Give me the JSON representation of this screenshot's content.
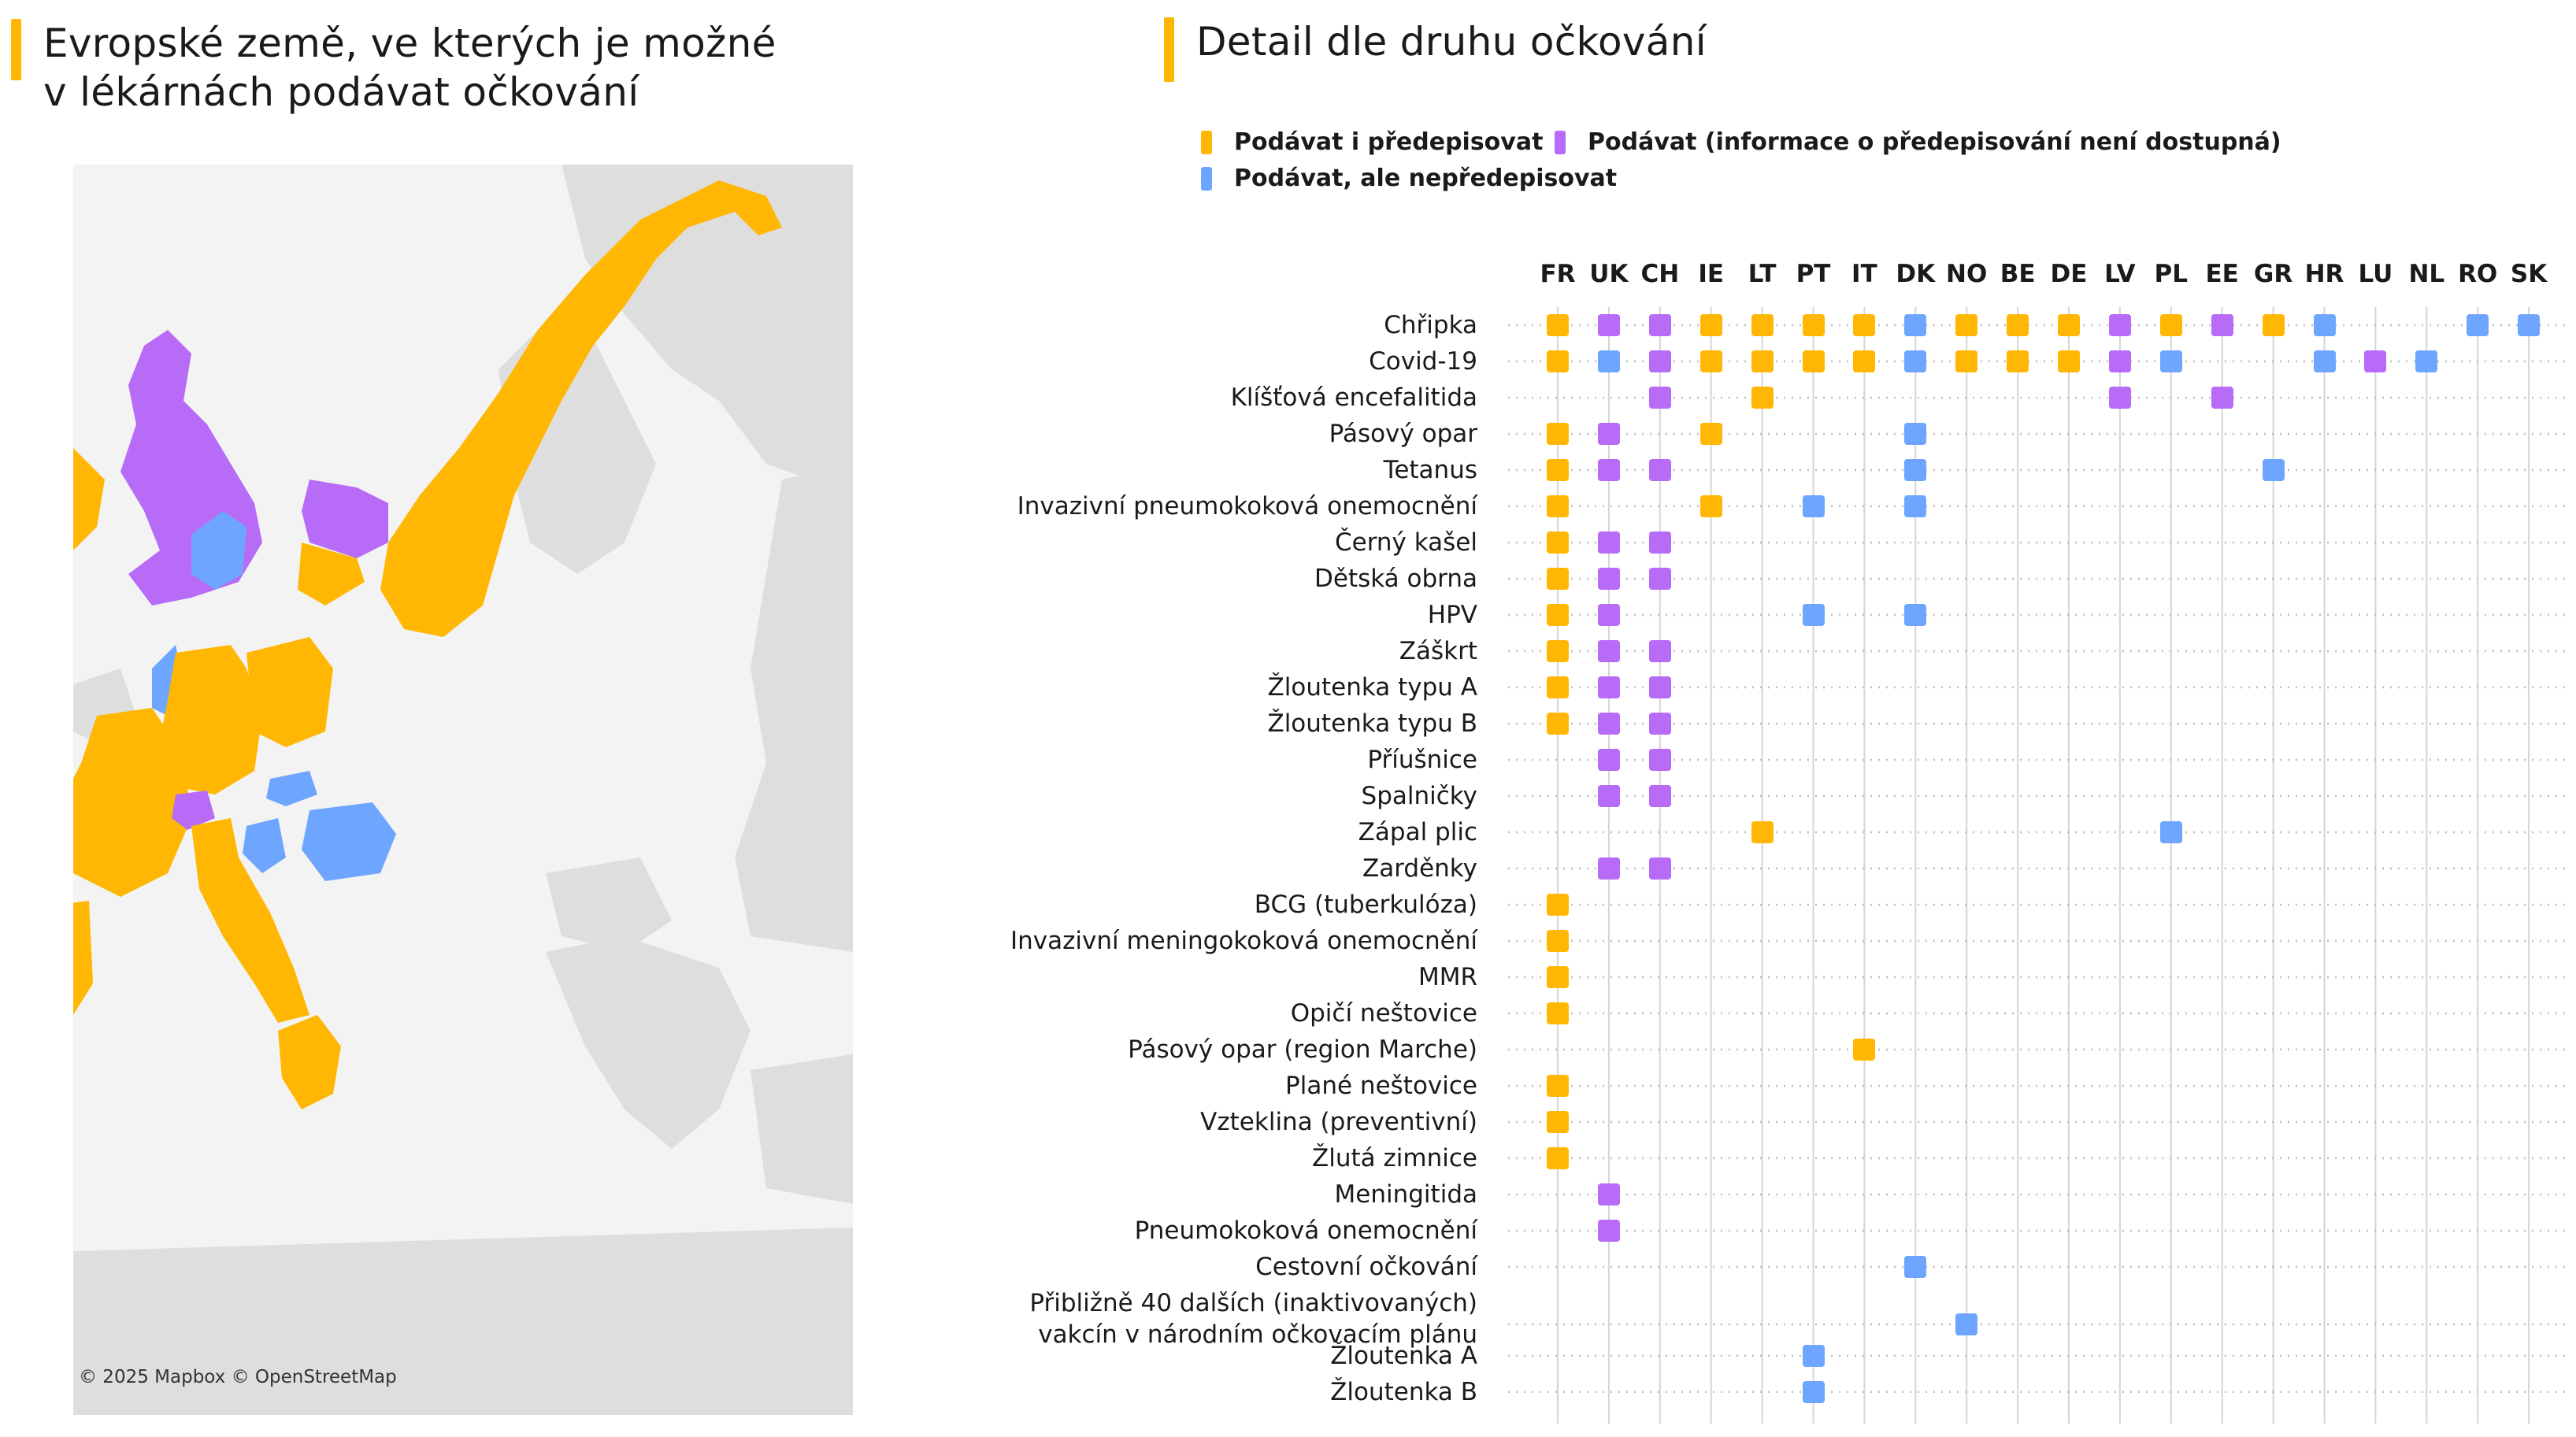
{
  "left_title": [
    "Evropské země, ve kterých je možné",
    "v lékárnách podávat očkování"
  ],
  "right_title": "Detail dle druhu očkování",
  "map_credit": "© 2025 Mapbox © OpenStreetMap",
  "colors": {
    "accent": "#ffb703",
    "prescribe": "#ffb703",
    "no_info": "#b76bf6",
    "no_prescribe": "#6ea6ff",
    "land": "#dedede",
    "sea": "#f3f3f3"
  },
  "legend": [
    {
      "label": "Podávat i předepisovat",
      "color": "#ffb703"
    },
    {
      "label": "Podávat (informace o předepisování není dostupná)",
      "color": "#b76bf6"
    },
    {
      "label": "Podávat, ale nepředepisovat",
      "color": "#6ea6ff"
    }
  ],
  "chart_data": {
    "type": "table",
    "columns": [
      "FR",
      "UK",
      "CH",
      "IE",
      "LT",
      "PT",
      "IT",
      "DK",
      "NO",
      "BE",
      "DE",
      "LV",
      "PL",
      "EE",
      "GR",
      "HR",
      "LU",
      "NL",
      "RO",
      "SK"
    ],
    "categories": {
      "P": "Podávat i předepisovat",
      "I": "Podávat (informace o předepisování není dostupná)",
      "N": "Podávat, ale nepředepisovat"
    },
    "rows": [
      {
        "label": [
          "Chřipka"
        ],
        "marks": {
          "FR": "P",
          "UK": "I",
          "CH": "I",
          "IE": "P",
          "LT": "P",
          "PT": "P",
          "IT": "P",
          "DK": "N",
          "NO": "P",
          "BE": "P",
          "DE": "P",
          "LV": "I",
          "PL": "P",
          "EE": "I",
          "GR": "P",
          "HR": "N",
          "RO": "N",
          "SK": "N"
        }
      },
      {
        "label": [
          "Covid-19"
        ],
        "marks": {
          "FR": "P",
          "UK": "N",
          "CH": "I",
          "IE": "P",
          "LT": "P",
          "PT": "P",
          "IT": "P",
          "DK": "N",
          "NO": "P",
          "BE": "P",
          "DE": "P",
          "LV": "I",
          "PL": "N",
          "HR": "N",
          "LU": "I",
          "NL": "N"
        }
      },
      {
        "label": [
          "Klíšťová encefalitida"
        ],
        "marks": {
          "CH": "I",
          "LT": "P",
          "LV": "I",
          "EE": "I"
        }
      },
      {
        "label": [
          "Pásový opar"
        ],
        "marks": {
          "FR": "P",
          "UK": "I",
          "IE": "P",
          "DK": "N"
        }
      },
      {
        "label": [
          "Tetanus"
        ],
        "marks": {
          "FR": "P",
          "UK": "I",
          "CH": "I",
          "DK": "N",
          "GR": "N"
        }
      },
      {
        "label": [
          "Invazivní pneumokoková onemocnění"
        ],
        "marks": {
          "FR": "P",
          "IE": "P",
          "PT": "N",
          "DK": "N"
        }
      },
      {
        "label": [
          "Černý kašel"
        ],
        "marks": {
          "FR": "P",
          "UK": "I",
          "CH": "I"
        }
      },
      {
        "label": [
          "Dětská obrna"
        ],
        "marks": {
          "FR": "P",
          "UK": "I",
          "CH": "I"
        }
      },
      {
        "label": [
          "HPV"
        ],
        "marks": {
          "FR": "P",
          "UK": "I",
          "PT": "N",
          "DK": "N"
        }
      },
      {
        "label": [
          "Záškrt"
        ],
        "marks": {
          "FR": "P",
          "UK": "I",
          "CH": "I"
        }
      },
      {
        "label": [
          "Žloutenka typu A"
        ],
        "marks": {
          "FR": "P",
          "UK": "I",
          "CH": "I"
        }
      },
      {
        "label": [
          "Žloutenka typu B"
        ],
        "marks": {
          "FR": "P",
          "UK": "I",
          "CH": "I"
        }
      },
      {
        "label": [
          "Příušnice"
        ],
        "marks": {
          "UK": "I",
          "CH": "I"
        }
      },
      {
        "label": [
          "Spalničky"
        ],
        "marks": {
          "UK": "I",
          "CH": "I"
        }
      },
      {
        "label": [
          "Zápal plic"
        ],
        "marks": {
          "LT": "P",
          "PL": "N"
        }
      },
      {
        "label": [
          "Zarděnky"
        ],
        "marks": {
          "UK": "I",
          "CH": "I"
        }
      },
      {
        "label": [
          "BCG (tuberkulóza)"
        ],
        "marks": {
          "FR": "P"
        }
      },
      {
        "label": [
          "Invazivní meningokoková onemocnění"
        ],
        "marks": {
          "FR": "P"
        }
      },
      {
        "label": [
          "MMR"
        ],
        "marks": {
          "FR": "P"
        }
      },
      {
        "label": [
          "Opičí neštovice"
        ],
        "marks": {
          "FR": "P"
        }
      },
      {
        "label": [
          "Pásový opar (region Marche)"
        ],
        "marks": {
          "IT": "P"
        }
      },
      {
        "label": [
          "Plané neštovice"
        ],
        "marks": {
          "FR": "P"
        }
      },
      {
        "label": [
          "Vzteklina (preventivní)"
        ],
        "marks": {
          "FR": "P"
        }
      },
      {
        "label": [
          "Žlutá zimnice"
        ],
        "marks": {
          "FR": "P"
        }
      },
      {
        "label": [
          "Meningitida"
        ],
        "marks": {
          "UK": "I"
        }
      },
      {
        "label": [
          "Pneumokoková onemocnění"
        ],
        "marks": {
          "UK": "I"
        }
      },
      {
        "label": [
          "Cestovní očkování"
        ],
        "marks": {
          "DK": "N"
        }
      },
      {
        "label": [
          "Přibližně 40 dalších (inaktivovaných)",
          "vakcín v národním očkovacím plánu"
        ],
        "marks": {
          "NO": "N"
        }
      },
      {
        "label": [
          "Žloutenka A"
        ],
        "marks": {
          "PT": "N"
        }
      },
      {
        "label": [
          "Žloutenka B"
        ],
        "marks": {
          "PT": "N"
        }
      }
    ]
  }
}
